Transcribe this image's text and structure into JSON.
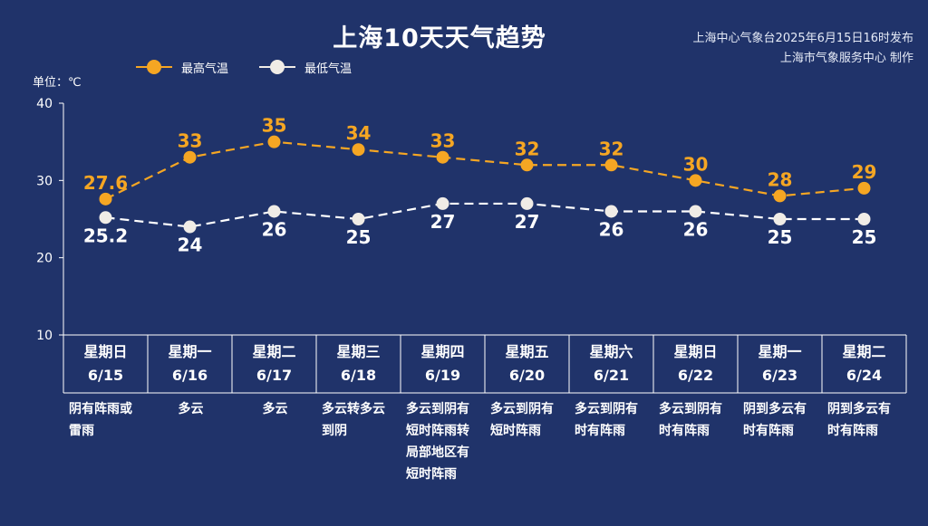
{
  "title": "上海10天天气趋势",
  "source": {
    "line1": "上海中心气象台2025年6月15日16时发布",
    "line2": "上海市气象服务中心 制作"
  },
  "unit": "单位：℃",
  "colors": {
    "background": "#20336a",
    "high": "#f5a623",
    "low": "#ffffff"
  },
  "chart_data": {
    "type": "line",
    "yticks": [
      10,
      20,
      30,
      40
    ],
    "ylim": [
      10,
      40
    ],
    "series": [
      {
        "name": "最高气温",
        "values": [
          27.6,
          33,
          35,
          34,
          33,
          32,
          32,
          30,
          28,
          29
        ],
        "labels": [
          "27.6",
          "33",
          "35",
          "34",
          "33",
          "32",
          "32",
          "30",
          "28",
          "29"
        ]
      },
      {
        "name": "最低气温",
        "values": [
          25.2,
          24,
          26,
          25,
          27,
          27,
          26,
          26,
          25,
          25
        ],
        "labels": [
          "25.2",
          "24",
          "26",
          "25",
          "27",
          "27",
          "26",
          "26",
          "25",
          "25"
        ]
      }
    ],
    "days": [
      {
        "weekday": "星期日",
        "date": "6/15",
        "weather": "阴有阵雨或雷雨"
      },
      {
        "weekday": "星期一",
        "date": "6/16",
        "weather": "多云"
      },
      {
        "weekday": "星期二",
        "date": "6/17",
        "weather": "多云"
      },
      {
        "weekday": "星期三",
        "date": "6/18",
        "weather": "多云转多云到阴"
      },
      {
        "weekday": "星期四",
        "date": "6/19",
        "weather": "多云到阴有短时阵雨转局部地区有短时阵雨"
      },
      {
        "weekday": "星期五",
        "date": "6/20",
        "weather": "多云到阴有短时阵雨"
      },
      {
        "weekday": "星期六",
        "date": "6/21",
        "weather": "多云到阴有时有阵雨"
      },
      {
        "weekday": "星期日",
        "date": "6/22",
        "weather": "多云到阴有时有阵雨"
      },
      {
        "weekday": "星期一",
        "date": "6/23",
        "weather": "阴到多云有时有阵雨"
      },
      {
        "weekday": "星期二",
        "date": "6/24",
        "weather": "阴到多云有时有阵雨"
      }
    ]
  }
}
